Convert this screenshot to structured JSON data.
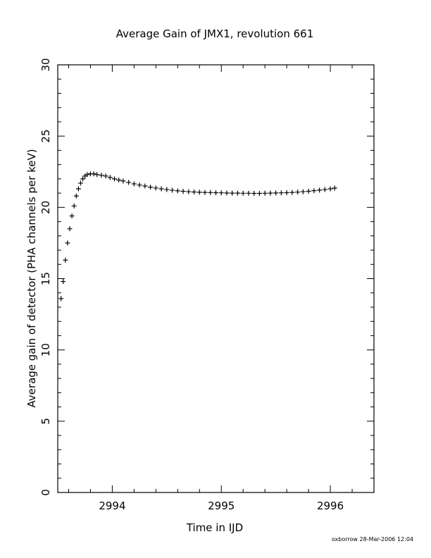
{
  "footer": "oxborrow 28-Mar-2006 12:04",
  "chart_data": {
    "type": "scatter",
    "marker": "plus",
    "title": "Average Gain of JMX1, revolution 661",
    "xlabel": "Time in IJD",
    "ylabel": "Average gain of detector (PHA channels per keV)",
    "xlim": [
      2993.5,
      2996.4
    ],
    "ylim": [
      0,
      30
    ],
    "xticks": [
      2994,
      2995,
      2996
    ],
    "xtick_labels": [
      "2994",
      "2995",
      "2996"
    ],
    "yticks": [
      0,
      5,
      10,
      15,
      20,
      25,
      30
    ],
    "ytick_labels": [
      "0",
      "5",
      "10",
      "15",
      "20",
      "25",
      "30"
    ],
    "grid": false,
    "series": [
      {
        "x": [
          2993.53,
          2993.55,
          2993.57,
          2993.59,
          2993.61,
          2993.63,
          2993.65,
          2993.67,
          2993.69,
          2993.71,
          2993.73,
          2993.75,
          2993.77,
          2993.8,
          2993.83,
          2993.86,
          2993.9,
          2993.94,
          2993.98,
          2994.02,
          2994.06,
          2994.1,
          2994.15,
          2994.2,
          2994.25,
          2994.3,
          2994.35,
          2994.4,
          2994.45,
          2994.5,
          2994.55,
          2994.6,
          2994.65,
          2994.7,
          2994.75,
          2994.8,
          2994.85,
          2994.9,
          2994.95,
          2995.0,
          2995.05,
          2995.1,
          2995.15,
          2995.2,
          2995.25,
          2995.3,
          2995.35,
          2995.4,
          2995.45,
          2995.5,
          2995.55,
          2995.6,
          2995.65,
          2995.7,
          2995.75,
          2995.8,
          2995.85,
          2995.9,
          2995.95,
          2996.0,
          2996.04
        ],
        "y": [
          13.6,
          14.8,
          16.3,
          17.5,
          18.5,
          19.4,
          20.1,
          20.8,
          21.3,
          21.7,
          22.0,
          22.2,
          22.3,
          22.35,
          22.35,
          22.3,
          22.25,
          22.2,
          22.1,
          22.0,
          21.92,
          21.85,
          21.75,
          21.65,
          21.57,
          21.5,
          21.42,
          21.36,
          21.3,
          21.25,
          21.2,
          21.16,
          21.13,
          21.1,
          21.08,
          21.06,
          21.05,
          21.04,
          21.03,
          21.02,
          21.01,
          21.0,
          21.0,
          20.99,
          20.99,
          20.98,
          20.98,
          20.99,
          21.0,
          21.01,
          21.02,
          21.03,
          21.05,
          21.07,
          21.1,
          21.13,
          21.17,
          21.21,
          21.25,
          21.3,
          21.35
        ]
      }
    ]
  }
}
